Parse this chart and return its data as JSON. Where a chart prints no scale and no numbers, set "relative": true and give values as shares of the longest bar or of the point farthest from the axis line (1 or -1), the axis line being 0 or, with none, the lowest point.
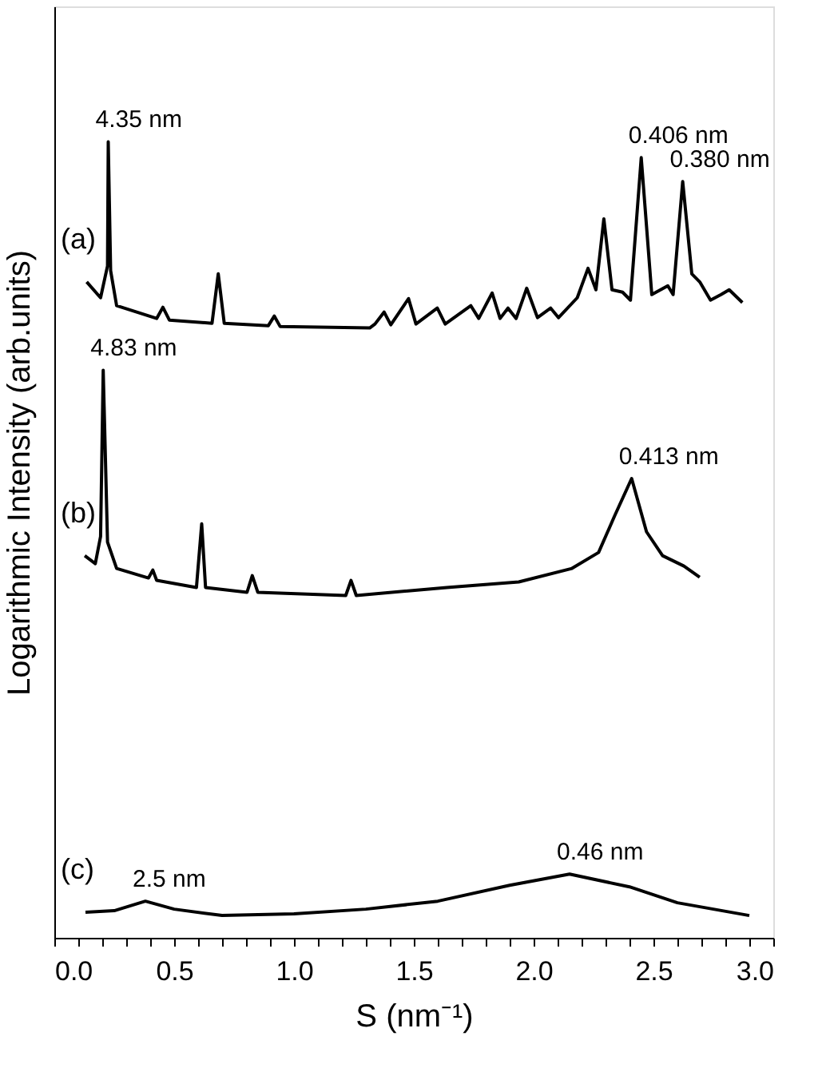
{
  "chart_data": {
    "type": "line",
    "relative": true,
    "xlabel": "S (nm⁻¹)",
    "ylabel": "Logarithmic Intensity (arb.units)",
    "xlim": [
      0,
      3.0
    ],
    "xticks": [
      {
        "value": 0,
        "label": "0.0"
      },
      {
        "value": 0.1,
        "label": null
      },
      {
        "value": 0.2,
        "label": null
      },
      {
        "value": 0.3,
        "label": null
      },
      {
        "value": 0.4,
        "label": null
      },
      {
        "value": 0.5,
        "label": "0.5"
      },
      {
        "value": 0.6,
        "label": null
      },
      {
        "value": 0.7,
        "label": null
      },
      {
        "value": 0.8,
        "label": null
      },
      {
        "value": 0.9,
        "label": null
      },
      {
        "value": 1.0,
        "label": "1.0"
      },
      {
        "value": 1.1,
        "label": null
      },
      {
        "value": 1.2,
        "label": null
      },
      {
        "value": 1.3,
        "label": null
      },
      {
        "value": 1.4,
        "label": null
      },
      {
        "value": 1.5,
        "label": "1.5"
      },
      {
        "value": 1.6,
        "label": null
      },
      {
        "value": 1.7,
        "label": null
      },
      {
        "value": 1.8,
        "label": null
      },
      {
        "value": 1.9,
        "label": null
      },
      {
        "value": 2.0,
        "label": "2.0"
      },
      {
        "value": 2.1,
        "label": null
      },
      {
        "value": 2.2,
        "label": null
      },
      {
        "value": 2.3,
        "label": null
      },
      {
        "value": 2.4,
        "label": null
      },
      {
        "value": 2.5,
        "label": "2.5"
      },
      {
        "value": 2.6,
        "label": null
      },
      {
        "value": 2.7,
        "label": null
      },
      {
        "value": 2.8,
        "label": null
      },
      {
        "value": 2.9,
        "label": null
      },
      {
        "value": 3.0,
        "label": "3.0"
      }
    ],
    "tick_labels": "x",
    "grid": false,
    "legend": false,
    "marker": "none",
    "line_style": "solid",
    "series": [
      {
        "name": "(a)",
        "color": "#000000",
        "x": [
          0.135,
          0.193,
          0.222,
          0.225,
          0.235,
          0.26,
          0.427,
          0.453,
          0.48,
          0.658,
          0.684,
          0.709,
          0.893,
          0.918,
          0.942,
          1.316,
          1.338,
          1.376,
          1.404,
          1.478,
          1.509,
          1.598,
          1.631,
          1.738,
          1.771,
          1.827,
          1.86,
          1.893,
          1.927,
          1.971,
          2.016,
          2.071,
          2.104,
          2.182,
          2.227,
          2.26,
          2.293,
          2.327,
          2.371,
          2.404,
          2.449,
          2.493,
          2.56,
          2.582,
          2.622,
          2.66,
          2.693,
          2.738,
          2.782,
          2.816,
          2.871
        ],
        "values": [
          0.824,
          0.804,
          0.844,
          1.0,
          0.838,
          0.794,
          0.778,
          0.792,
          0.776,
          0.772,
          0.834,
          0.772,
          0.769,
          0.781,
          0.768,
          0.766,
          0.771,
          0.786,
          0.77,
          0.803,
          0.771,
          0.791,
          0.771,
          0.794,
          0.778,
          0.81,
          0.778,
          0.791,
          0.778,
          0.816,
          0.779,
          0.791,
          0.779,
          0.804,
          0.841,
          0.814,
          0.903,
          0.814,
          0.811,
          0.801,
          0.98,
          0.808,
          0.819,
          0.808,
          0.95,
          0.834,
          0.824,
          0.801,
          0.808,
          0.814,
          0.798
        ]
      },
      {
        "name": "(b)",
        "color": "#000000",
        "x": [
          0.127,
          0.171,
          0.193,
          0.204,
          0.222,
          0.26,
          0.393,
          0.411,
          0.427,
          0.593,
          0.615,
          0.631,
          0.804,
          0.826,
          0.849,
          1.216,
          1.238,
          1.26,
          1.638,
          1.938,
          2.16,
          2.271,
          2.338,
          2.409,
          2.471,
          2.538,
          2.627,
          2.693
        ],
        "values": [
          0.48,
          0.47,
          0.504,
          0.713,
          0.497,
          0.464,
          0.452,
          0.462,
          0.449,
          0.44,
          0.52,
          0.44,
          0.434,
          0.455,
          0.434,
          0.43,
          0.449,
          0.43,
          0.44,
          0.447,
          0.464,
          0.484,
          0.53,
          0.577,
          0.51,
          0.48,
          0.467,
          0.453
        ]
      },
      {
        "name": "(c)",
        "color": "#000000",
        "x": [
          0.13,
          0.25,
          0.38,
          0.5,
          0.7,
          1.0,
          1.3,
          1.6,
          1.9,
          2.15,
          2.4,
          2.6,
          2.9
        ],
        "values": [
          0.032,
          0.034,
          0.046,
          0.036,
          0.028,
          0.03,
          0.036,
          0.046,
          0.066,
          0.08,
          0.064,
          0.044,
          0.028
        ]
      }
    ],
    "annotations": [
      {
        "text": "4.35 nm",
        "x": 0.225,
        "y": 1.0
      },
      {
        "text": "0.406 nm",
        "x": 2.449,
        "y": 0.98
      },
      {
        "text": "0.380 nm",
        "x": 2.622,
        "y": 0.95
      },
      {
        "text": "4.83 nm",
        "x": 0.204,
        "y": 0.713
      },
      {
        "text": "0.413 nm",
        "x": 2.409,
        "y": 0.577
      },
      {
        "text": "2.5 nm",
        "x": 0.38,
        "y": 0.046
      },
      {
        "text": "0.46 nm",
        "x": 2.15,
        "y": 0.08
      }
    ]
  }
}
